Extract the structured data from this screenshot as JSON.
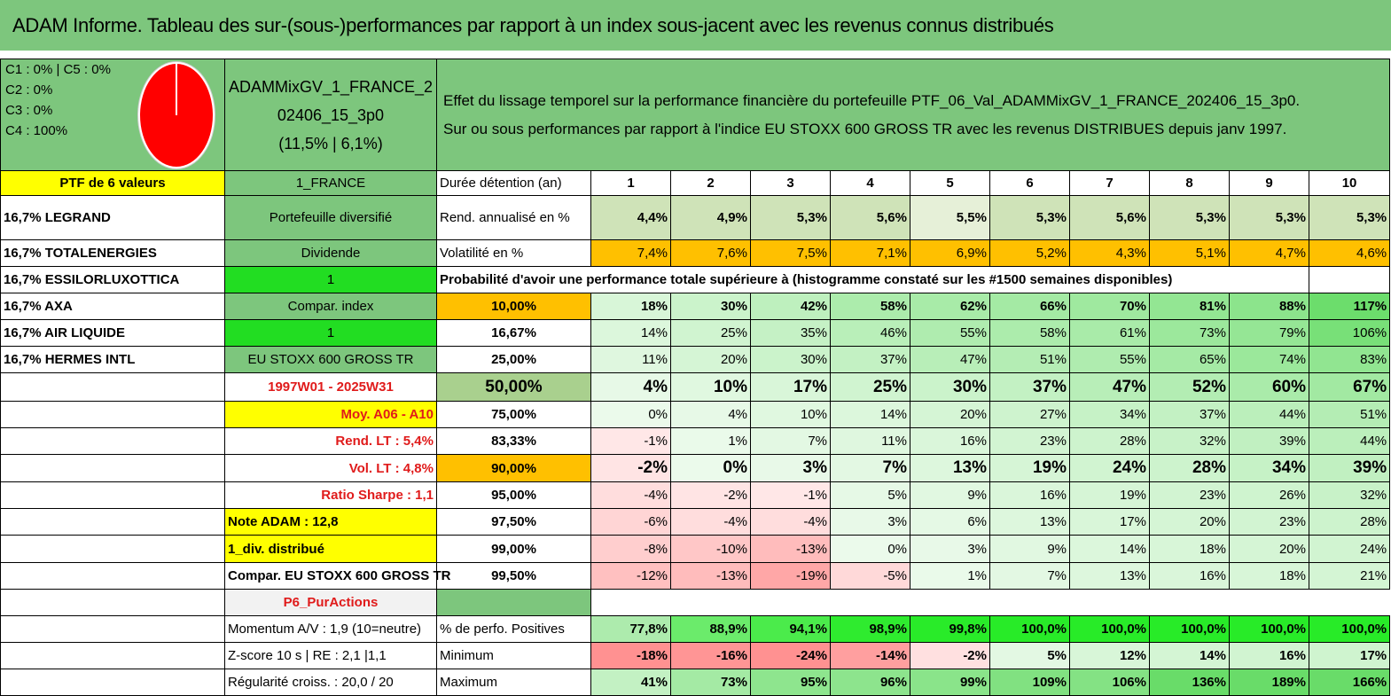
{
  "title": "ADAM Informe. Tableau des sur-(sous-)performances par rapport à un index sous-jacent avec les revenus connus distribués",
  "allocation": [
    "C1 : 0% | C5 : 0%",
    "C2 : 0%",
    "C3 : 0%",
    "C4 : 100%"
  ],
  "portfolio": {
    "name_line1": "ADAMMixGV_1_FRANCE_2",
    "name_line2": "02406_15_3p0",
    "perf": "(11,5% | 6,1%)",
    "header_line1": "Effet du lissage temporel sur la performance financière du portefeuille PTF_06_Val_ADAMMixGV_1_FRANCE_202406_15_3p0.",
    "header_line2": "Sur ou sous performances par rapport à l'indice EU STOXX 600 GROSS TR avec les revenus DISTRIBUES depuis janv 1997."
  },
  "col1": {
    "ptf": "PTF de 6 valeurs",
    "holdings": [
      "16,7% LEGRAND",
      "16,7% TOTALENERGIES",
      "16,7% ESSILORLUXOTTICA",
      "16,7% AXA",
      "16,7% AIR LIQUIDE",
      "16,7% HERMES INTL"
    ]
  },
  "col2": {
    "country": "1_FRANCE",
    "type": "Portefeuille diversifié",
    "dividend": "Dividende",
    "one_a": "1",
    "compar_index": "Compar. index",
    "one_b": "1",
    "index_name": "EU STOXX 600 GROSS TR",
    "period": "1997W01 - 2025W31",
    "moy": "Moy. A06 - A10",
    "rend_lt": "Rend. LT : 5,4%",
    "vol_lt": "Vol. LT : 4,8%",
    "sharpe": "Ratio Sharpe : 1,1",
    "note": "Note ADAM : 12,8",
    "div": "1_div. distribué",
    "compar_full": "Compar. EU STOXX 600 GROSS TR",
    "pur": "P6_PurActions",
    "momentum": "Momentum A/V : 1,9 (10=neutre)",
    "zscore": "Z-score 10 s | RE : 2,1 |1,1",
    "regularite": "Régularité croiss. : 20,0 / 20"
  },
  "stats": {
    "duration_label": "Durée détention (an)",
    "years": [
      "1",
      "2",
      "3",
      "4",
      "5",
      "6",
      "7",
      "8",
      "9",
      "10"
    ],
    "rend_label": "Rend. annualisé en %",
    "rend": [
      "4,4%",
      "4,9%",
      "5,3%",
      "5,6%",
      "5,5%",
      "5,3%",
      "5,6%",
      "5,3%",
      "5,3%",
      "5,3%"
    ],
    "vol_label": "Volatilité en %",
    "vol": [
      "7,4%",
      "7,6%",
      "7,5%",
      "7,1%",
      "6,9%",
      "5,2%",
      "4,3%",
      "5,1%",
      "4,7%",
      "4,6%"
    ],
    "prob_label": "Probabilité d'avoir une performance totale supérieure à (histogramme constaté sur les #1500 semaines disponibles)",
    "quantiles": [
      {
        "p": "10,00%",
        "v": [
          "18%",
          "30%",
          "42%",
          "58%",
          "62%",
          "66%",
          "70%",
          "81%",
          "88%",
          "117%"
        ]
      },
      {
        "p": "16,67%",
        "v": [
          "14%",
          "25%",
          "35%",
          "46%",
          "55%",
          "58%",
          "61%",
          "73%",
          "79%",
          "106%"
        ]
      },
      {
        "p": "25,00%",
        "v": [
          "11%",
          "20%",
          "30%",
          "37%",
          "47%",
          "51%",
          "55%",
          "65%",
          "74%",
          "83%"
        ]
      },
      {
        "p": "50,00%",
        "v": [
          "4%",
          "10%",
          "17%",
          "25%",
          "30%",
          "37%",
          "47%",
          "52%",
          "60%",
          "67%"
        ]
      },
      {
        "p": "75,00%",
        "v": [
          "0%",
          "4%",
          "10%",
          "14%",
          "20%",
          "27%",
          "34%",
          "37%",
          "44%",
          "51%"
        ]
      },
      {
        "p": "83,33%",
        "v": [
          "-1%",
          "1%",
          "7%",
          "11%",
          "16%",
          "23%",
          "28%",
          "32%",
          "39%",
          "44%"
        ]
      },
      {
        "p": "90,00%",
        "v": [
          "-2%",
          "0%",
          "3%",
          "7%",
          "13%",
          "19%",
          "24%",
          "28%",
          "34%",
          "39%"
        ]
      },
      {
        "p": "95,00%",
        "v": [
          "-4%",
          "-2%",
          "-1%",
          "5%",
          "9%",
          "16%",
          "19%",
          "23%",
          "26%",
          "32%"
        ]
      },
      {
        "p": "97,50%",
        "v": [
          "-6%",
          "-4%",
          "-4%",
          "3%",
          "6%",
          "13%",
          "17%",
          "20%",
          "23%",
          "28%"
        ]
      },
      {
        "p": "99,00%",
        "v": [
          "-8%",
          "-10%",
          "-13%",
          "0%",
          "3%",
          "9%",
          "14%",
          "18%",
          "20%",
          "24%"
        ]
      },
      {
        "p": "99,50%",
        "v": [
          "-12%",
          "-13%",
          "-19%",
          "-5%",
          "1%",
          "7%",
          "13%",
          "16%",
          "18%",
          "21%"
        ]
      }
    ],
    "pos_label": "% de perfo. Positives",
    "pos": [
      "77,8%",
      "88,9%",
      "94,1%",
      "98,9%",
      "99,8%",
      "100,0%",
      "100,0%",
      "100,0%",
      "100,0%",
      "100,0%"
    ],
    "min_label": "Minimum",
    "min": [
      "-18%",
      "-16%",
      "-24%",
      "-14%",
      "-2%",
      "5%",
      "12%",
      "14%",
      "16%",
      "17%"
    ],
    "max_label": "Maximum",
    "max": [
      "41%",
      "73%",
      "95%",
      "96%",
      "99%",
      "109%",
      "106%",
      "136%",
      "189%",
      "166%"
    ]
  },
  "colors": {
    "title_green": "#7dc67d",
    "highlight_yellow": "#ffff00",
    "highlight_orange": "#ffc000",
    "highlight_bright_green": "#22dd22",
    "text_red": "#e01b1b"
  }
}
